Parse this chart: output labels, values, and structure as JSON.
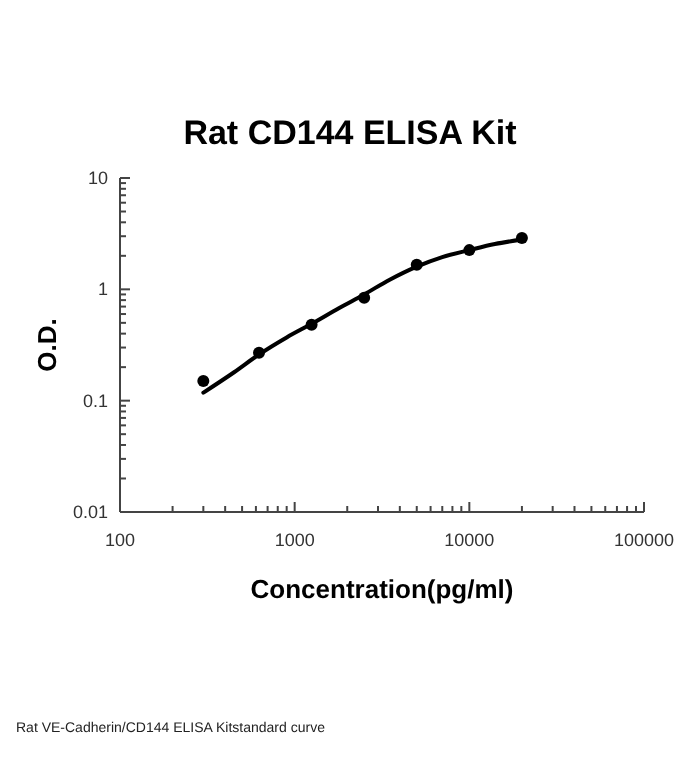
{
  "chart_data": {
    "type": "scatter",
    "title": "Rat CD144 ELISA Kit",
    "xlabel": "Concentration(pg/ml)",
    "ylabel": "O.D.",
    "log": "xy",
    "grid": false,
    "xlim": [
      100,
      100000
    ],
    "xticks": [
      100,
      1000,
      10000,
      100000
    ],
    "ylim": [
      0.01,
      10
    ],
    "yticks": [
      0.01,
      0.1,
      1,
      10
    ],
    "series": [
      {
        "color": "#000000",
        "marker": "circle",
        "x": [
          300,
          625,
          1250,
          2500,
          5000,
          10000,
          20000
        ],
        "values": [
          0.15,
          0.27,
          0.48,
          0.84,
          1.66,
          2.25,
          2.89
        ]
      },
      {
        "type": "line",
        "color": "#000000",
        "marker": "none",
        "line_style": "solid",
        "x": [
          300,
          450,
          625,
          900,
          1250,
          1800,
          2500,
          3500,
          5000,
          7000,
          10000,
          14000,
          20000
        ],
        "values": [
          0.118,
          0.18,
          0.26,
          0.37,
          0.49,
          0.68,
          0.9,
          1.22,
          1.6,
          1.95,
          2.25,
          2.55,
          2.8
        ]
      }
    ],
    "annotations": [
      "Rat VE-Cadherin/CD144 ELISA Kitstandard curve"
    ]
  }
}
